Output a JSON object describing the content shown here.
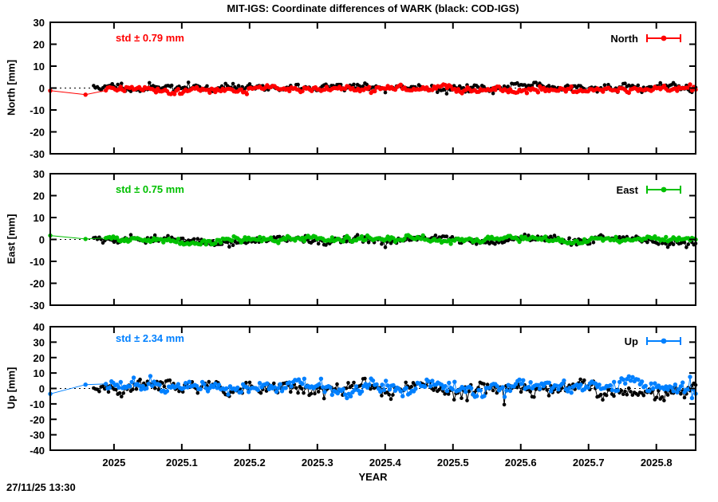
{
  "header": {
    "title": "MIT-IGS: Coordinate differences of WARK (black: COD-IGS)"
  },
  "footer": {
    "timestamp": "27/11/25 13:30"
  },
  "chart_data": {
    "type": "scatter",
    "title": "MIT-IGS: Coordinate differences of WARK (black: COD-IGS)",
    "xlabel": "YEAR",
    "x_range": [
      2024.906,
      2025.858
    ],
    "x_ticks": [
      "2025",
      "2025.1",
      "2025.2",
      "2025.3",
      "2025.4",
      "2025.5",
      "2025.6",
      "2025.7",
      "2025.8"
    ],
    "grid": false,
    "zero_line_style": "dotted",
    "panels": [
      {
        "name": "North",
        "ylabel": "North [mm]",
        "legend": "North",
        "std_mm": 0.79,
        "std_label": "std ± 0.79 mm",
        "color": "#ff0000",
        "ylim": [
          -30,
          30
        ],
        "yticks": [
          30,
          20,
          10,
          0,
          -10,
          -20,
          -30
        ],
        "series": [
          {
            "name": "COD-IGS",
            "color": "#000000",
            "mean": 0.3,
            "std": 1.0,
            "start": 2024.97,
            "seed": 11
          },
          {
            "name": "MIT-IGS",
            "color": "#ff0000",
            "mean": -0.4,
            "std": 0.79,
            "start": 2024.988,
            "seed": 21,
            "early_points": [
              [
                2024.906,
                -1.2
              ],
              [
                2024.958,
                -3.0
              ]
            ]
          }
        ]
      },
      {
        "name": "East",
        "ylabel": "East [mm]",
        "legend": "East",
        "std_mm": 0.75,
        "std_label": "std ± 0.75 mm",
        "color": "#00c000",
        "ylim": [
          -30,
          30
        ],
        "yticks": [
          30,
          20,
          10,
          0,
          -10,
          -20,
          -30
        ],
        "series": [
          {
            "name": "COD-IGS",
            "color": "#000000",
            "mean": -0.6,
            "std": 1.0,
            "start": 2024.97,
            "seed": 31
          },
          {
            "name": "MIT-IGS",
            "color": "#00c000",
            "mean": 0.0,
            "std": 0.75,
            "start": 2024.988,
            "seed": 41,
            "early_points": [
              [
                2024.906,
                1.8
              ],
              [
                2024.958,
                0.2
              ]
            ]
          }
        ]
      },
      {
        "name": "Up",
        "ylabel": "Up [mm]",
        "legend": "Up",
        "std_mm": 2.34,
        "std_label": "std ± 2.34 mm",
        "color": "#0080ff",
        "ylim": [
          -40,
          40
        ],
        "yticks": [
          40,
          30,
          20,
          10,
          0,
          -10,
          -20,
          -30,
          -40
        ],
        "series": [
          {
            "name": "COD-IGS",
            "color": "#000000",
            "mean": 0.0,
            "std": 2.6,
            "start": 2024.97,
            "seed": 51,
            "spikes": [
              [
                2025.31,
                -6.5
              ],
              [
                2025.575,
                -10.5
              ]
            ]
          },
          {
            "name": "MIT-IGS",
            "color": "#0080ff",
            "mean": 0.8,
            "std": 2.34,
            "start": 2024.988,
            "seed": 61,
            "early_points": [
              [
                2024.906,
                -3.5
              ],
              [
                2024.958,
                2.5
              ]
            ],
            "spikes": [
              [
                2025.055,
                8.0
              ],
              [
                2025.85,
                7.5
              ]
            ]
          }
        ]
      }
    ]
  }
}
